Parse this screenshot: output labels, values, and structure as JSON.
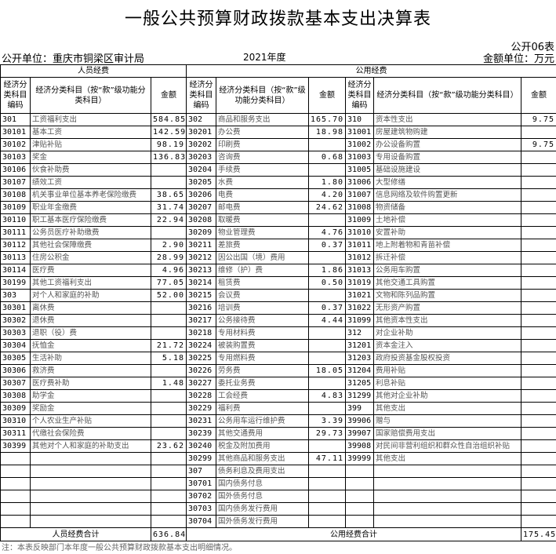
{
  "title": "一般公共预算财政拨款基本支出决算表",
  "form_no": "公开06表",
  "unit": "公开单位：重庆市铜梁区审计局",
  "year": "2021年度",
  "money_unit": "金额单位：万元",
  "groups": {
    "personnel": "人员经费",
    "public": "公用经费"
  },
  "headers": {
    "code": "经济分类科目编码",
    "name_a": "经济分类科目（按“款”级功能分类科目）",
    "name_b": "经济分类科目（按“款”级功能分类科目）",
    "name_c": "经济分类科目（按“款”级功能分类科目）",
    "amount": "金额"
  },
  "personnel": [
    {
      "code": "301",
      "name": "工资福利支出",
      "amount": "584.85"
    },
    {
      "code": "30101",
      "name": "基本工资",
      "amount": "142.59"
    },
    {
      "code": "30102",
      "name": "津贴补贴",
      "amount": "98.19"
    },
    {
      "code": "30103",
      "name": "奖金",
      "amount": "136.83"
    },
    {
      "code": "30106",
      "name": "伙食补助费",
      "amount": ""
    },
    {
      "code": "30107",
      "name": "绩效工资",
      "amount": ""
    },
    {
      "code": "30108",
      "name": "机关事业单位基本养老保险缴费",
      "amount": "38.65"
    },
    {
      "code": "30109",
      "name": "职业年金缴费",
      "amount": "31.74"
    },
    {
      "code": "30110",
      "name": "职工基本医疗保险缴费",
      "amount": "22.94"
    },
    {
      "code": "30111",
      "name": "公务员医疗补助缴费",
      "amount": ""
    },
    {
      "code": "30112",
      "name": "其他社会保障缴费",
      "amount": "2.90"
    },
    {
      "code": "30113",
      "name": "住房公积金",
      "amount": "28.99"
    },
    {
      "code": "30114",
      "name": "医疗费",
      "amount": "4.96"
    },
    {
      "code": "30199",
      "name": "其他工资福利支出",
      "amount": "77.05"
    },
    {
      "code": "303",
      "name": "对个人和家庭的补助",
      "amount": "52.00"
    },
    {
      "code": "30301",
      "name": "离休费",
      "amount": ""
    },
    {
      "code": "30302",
      "name": "退休费",
      "amount": ""
    },
    {
      "code": "30303",
      "name": "退职（役）费",
      "amount": ""
    },
    {
      "code": "30304",
      "name": "抚恤金",
      "amount": "21.72"
    },
    {
      "code": "30305",
      "name": "生活补助",
      "amount": "5.18"
    },
    {
      "code": "30306",
      "name": "救济费",
      "amount": ""
    },
    {
      "code": "30307",
      "name": "医疗费补助",
      "amount": "1.48"
    },
    {
      "code": "30308",
      "name": "助学金",
      "amount": ""
    },
    {
      "code": "30309",
      "name": "奖励金",
      "amount": ""
    },
    {
      "code": "30310",
      "name": "个人农业生产补贴",
      "amount": ""
    },
    {
      "code": "30311",
      "name": "代缴社会保险费",
      "amount": ""
    },
    {
      "code": "30399",
      "name": "其他对个人和家庭的补助支出",
      "amount": "23.62"
    }
  ],
  "public_a": [
    {
      "code": "302",
      "name": "商品和服务支出",
      "amount": "165.70"
    },
    {
      "code": "30201",
      "name": "办公费",
      "amount": "18.98"
    },
    {
      "code": "30202",
      "name": "印刷费",
      "amount": ""
    },
    {
      "code": "30203",
      "name": "咨询费",
      "amount": "0.68"
    },
    {
      "code": "30204",
      "name": "手续费",
      "amount": ""
    },
    {
      "code": "30205",
      "name": "水费",
      "amount": "1.80"
    },
    {
      "code": "30206",
      "name": "电费",
      "amount": "4.20"
    },
    {
      "code": "30207",
      "name": "邮电费",
      "amount": "24.62"
    },
    {
      "code": "30208",
      "name": "取暖费",
      "amount": ""
    },
    {
      "code": "30209",
      "name": "物业管理费",
      "amount": "4.76"
    },
    {
      "code": "30211",
      "name": "差旅费",
      "amount": "0.37"
    },
    {
      "code": "30212",
      "name": "因公出国（境）费用",
      "amount": ""
    },
    {
      "code": "30213",
      "name": "维修（护）费",
      "amount": "1.86"
    },
    {
      "code": "30214",
      "name": "租赁费",
      "amount": "0.50"
    },
    {
      "code": "30215",
      "name": "会议费",
      "amount": ""
    },
    {
      "code": "30216",
      "name": "培训费",
      "amount": "0.37"
    },
    {
      "code": "30217",
      "name": "公务接待费",
      "amount": "4.44"
    },
    {
      "code": "30218",
      "name": "专用材料费",
      "amount": ""
    },
    {
      "code": "30224",
      "name": "被装购置费",
      "amount": ""
    },
    {
      "code": "30225",
      "name": "专用燃料费",
      "amount": ""
    },
    {
      "code": "30226",
      "name": "劳务费",
      "amount": "18.05"
    },
    {
      "code": "30227",
      "name": "委托业务费",
      "amount": ""
    },
    {
      "code": "30228",
      "name": "工会经费",
      "amount": "4.83"
    },
    {
      "code": "30229",
      "name": "福利费",
      "amount": ""
    },
    {
      "code": "30231",
      "name": "公务用车运行维护费",
      "amount": "3.39"
    },
    {
      "code": "30239",
      "name": "其他交通费用",
      "amount": "29.73"
    },
    {
      "code": "30240",
      "name": "税金及附加费用",
      "amount": ""
    },
    {
      "code": "30299",
      "name": "其他商品和服务支出",
      "amount": "47.11"
    },
    {
      "code": "307",
      "name": "债务利息及费用支出",
      "amount": ""
    },
    {
      "code": "30701",
      "name": "国内债务付息",
      "amount": ""
    },
    {
      "code": "30702",
      "name": "国外债务付息",
      "amount": ""
    },
    {
      "code": "30703",
      "name": "国内债务发行费用",
      "amount": ""
    },
    {
      "code": "30704",
      "name": "国外债务发行费用",
      "amount": ""
    }
  ],
  "public_b": [
    {
      "code": "310",
      "name": "资本性支出",
      "amount": "9.75"
    },
    {
      "code": "31001",
      "name": "房屋建筑物购建",
      "amount": ""
    },
    {
      "code": "31002",
      "name": "办公设备购置",
      "amount": "9.75"
    },
    {
      "code": "31003",
      "name": "专用设备购置",
      "amount": ""
    },
    {
      "code": "31005",
      "name": "基础设施建设",
      "amount": ""
    },
    {
      "code": "31006",
      "name": "大型修缮",
      "amount": ""
    },
    {
      "code": "31007",
      "name": "信息网络及软件购置更新",
      "amount": ""
    },
    {
      "code": "31008",
      "name": "物资储备",
      "amount": ""
    },
    {
      "code": "31009",
      "name": "土地补偿",
      "amount": ""
    },
    {
      "code": "31010",
      "name": "安置补助",
      "amount": ""
    },
    {
      "code": "31011",
      "name": "地上附着物和青苗补偿",
      "amount": ""
    },
    {
      "code": "31012",
      "name": "拆迁补偿",
      "amount": ""
    },
    {
      "code": "31013",
      "name": "公务用车购置",
      "amount": ""
    },
    {
      "code": "31019",
      "name": "其他交通工具购置",
      "amount": ""
    },
    {
      "code": "31021",
      "name": "文物和陈列品购置",
      "amount": ""
    },
    {
      "code": "31022",
      "name": "无形资产购置",
      "amount": ""
    },
    {
      "code": "31099",
      "name": "其他资本性支出",
      "amount": ""
    },
    {
      "code": "312",
      "name": "对企业补助",
      "amount": ""
    },
    {
      "code": "31201",
      "name": "资本金注入",
      "amount": ""
    },
    {
      "code": "31203",
      "name": "政府投资基金股权投资",
      "amount": ""
    },
    {
      "code": "31204",
      "name": "费用补贴",
      "amount": ""
    },
    {
      "code": "31205",
      "name": "利息补贴",
      "amount": ""
    },
    {
      "code": "31299",
      "name": "其他对企业补助",
      "amount": ""
    },
    {
      "code": "399",
      "name": "其他支出",
      "amount": ""
    },
    {
      "code": "39906",
      "name": "赠与",
      "amount": ""
    },
    {
      "code": "39907",
      "name": "国家赔偿费用支出",
      "amount": ""
    },
    {
      "code": "39908",
      "name": "对民间非营利组织和群众性自治组织补贴",
      "amount": ""
    },
    {
      "code": "39999",
      "name": "其他支出",
      "amount": ""
    }
  ],
  "totals": {
    "personnel_label": "人员经费合计",
    "personnel_amount": "636.84",
    "public_label": "公用经费合计",
    "public_amount": "175.45"
  },
  "note": "注：本表反映部门本年度一般公共预算财政拨款基本支出明细情况。"
}
